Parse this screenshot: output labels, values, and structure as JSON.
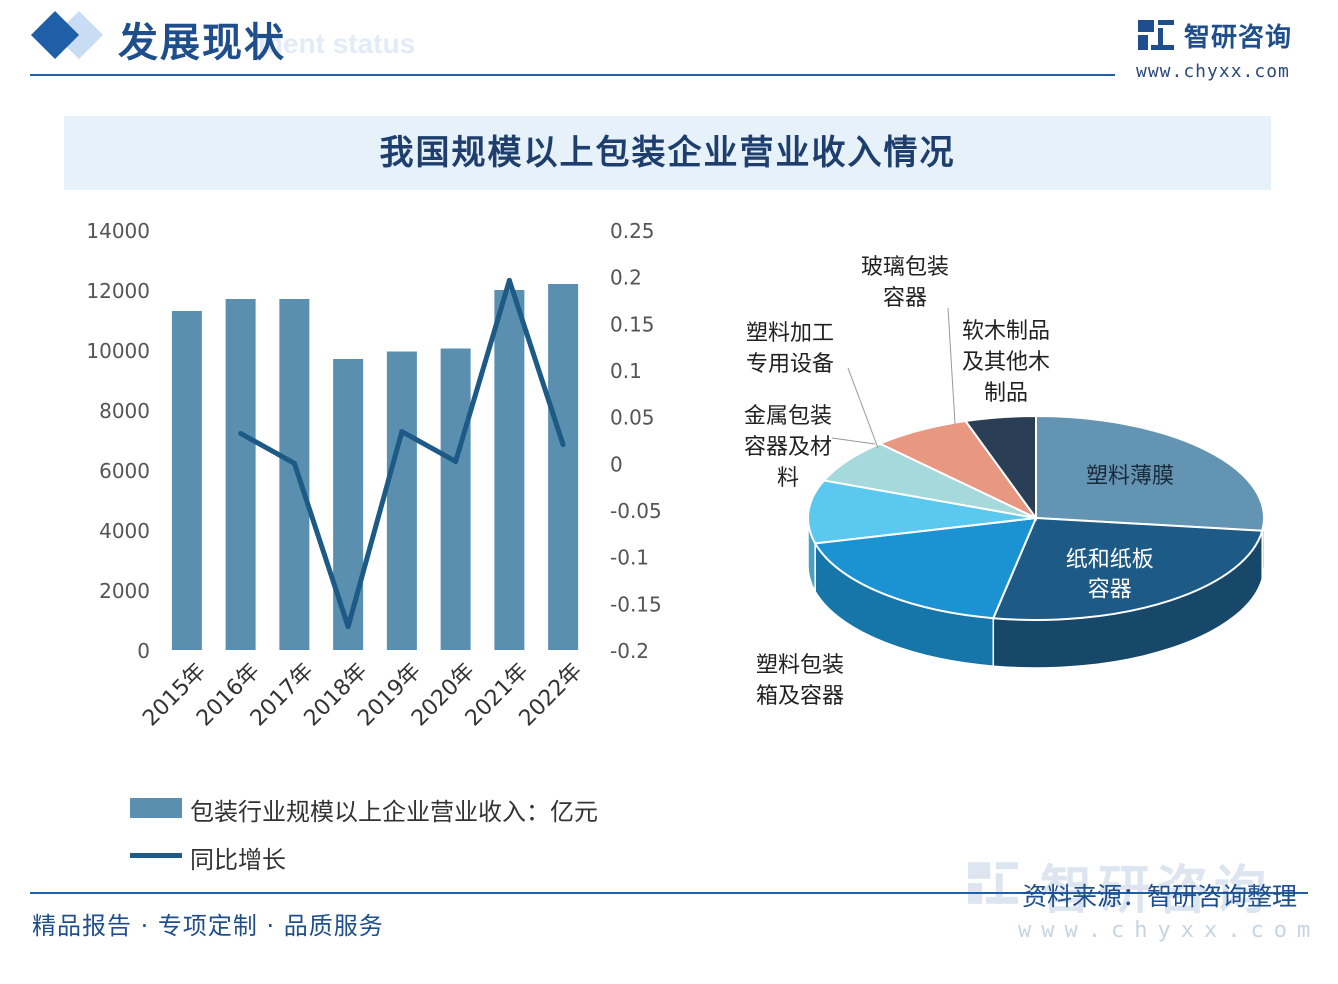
{
  "header": {
    "title": "发展现状",
    "subtitle_en": "ment status",
    "logo_name": "智研咨询",
    "logo_url": "www.chyxx.com"
  },
  "chart_title": "我国规模以上包装企业营业收入情况",
  "legend": {
    "bar_label": "包装行业规模以上企业营业收入：亿元",
    "line_label": "同比增长"
  },
  "footer": {
    "left": "精品报告 · 专项定制 · 品质服务",
    "source": "资料来源：智研咨询整理",
    "brand": "智研咨询",
    "url": "www.chyxx.com"
  },
  "colors": {
    "bar": "#5a8fb0",
    "line": "#1d5a85",
    "accent": "#1f5fa8",
    "title": "#1e3f6e"
  },
  "chart_data": [
    {
      "type": "bar",
      "categories": [
        "2015年",
        "2016年",
        "2017年",
        "2018年",
        "2019年",
        "2020年",
        "2021年",
        "2022年"
      ],
      "y_left": {
        "min": 0,
        "max": 14000,
        "step": 2000,
        "ticks": [
          "0",
          "2000",
          "4000",
          "6000",
          "8000",
          "10000",
          "12000",
          "14000"
        ]
      },
      "y_right": {
        "min": -0.2,
        "max": 0.25,
        "ticks": [
          "-0.2",
          "-0.15",
          "-0.1",
          "-0.05",
          "0",
          "0.05",
          "0.1",
          "0.15",
          "0.2",
          "0.25"
        ]
      },
      "series": [
        {
          "name": "包装行业规模以上企业营业收入：亿元",
          "type": "bar",
          "axis": "left",
          "values": [
            11300,
            11700,
            11700,
            9700,
            9950,
            10050,
            12000,
            12200
          ]
        },
        {
          "name": "同比增长",
          "type": "line",
          "axis": "right",
          "values": [
            null,
            0.032,
            0.0,
            -0.175,
            0.034,
            0.002,
            0.196,
            0.02
          ]
        }
      ],
      "grid": false
    },
    {
      "type": "pie",
      "labels": [
        "塑料薄膜",
        "纸和纸板容器",
        "塑料包装箱及容器",
        "金属包装容器及材料",
        "塑料加工专用设备",
        "玻璃包装容器",
        "软木制品及其他木制品"
      ],
      "values": [
        27,
        26,
        18,
        10,
        7,
        7,
        5
      ],
      "colors": [
        "#6494b3",
        "#1d5a85",
        "#1b93d3",
        "#5bc8ef",
        "#a6d9dc",
        "#e89880",
        "#2a3f55"
      ],
      "style": "3d"
    }
  ]
}
